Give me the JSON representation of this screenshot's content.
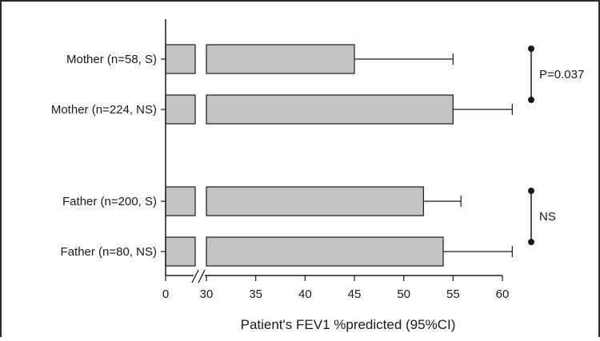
{
  "chart_data": {
    "type": "bar",
    "orientation": "horizontal",
    "categories": [
      "Mother (n=58, S)",
      "Mother (n=224, NS)",
      "Father (n=200, S)",
      "Father (n=80, NS)"
    ],
    "values": [
      45,
      55,
      52,
      54
    ],
    "error_upper": [
      55,
      61,
      55.8,
      61
    ],
    "xlabel": "Patient's FEV1 %predicted (95%CI)",
    "ylabel": "",
    "title": "",
    "xlim": [
      0,
      63
    ],
    "axis_break": [
      1,
      29
    ],
    "xticks": [
      0,
      30,
      35,
      40,
      45,
      50,
      55,
      60
    ],
    "xtick_labels": [
      "0",
      "30",
      "35",
      "40",
      "45",
      "50",
      "55",
      "60"
    ],
    "grid": false,
    "bar_color": "#c4c4c4",
    "comparisons": [
      {
        "between": [
          0,
          1
        ],
        "label": "P=0.037"
      },
      {
        "between": [
          2,
          3
        ],
        "label": "NS"
      }
    ]
  }
}
